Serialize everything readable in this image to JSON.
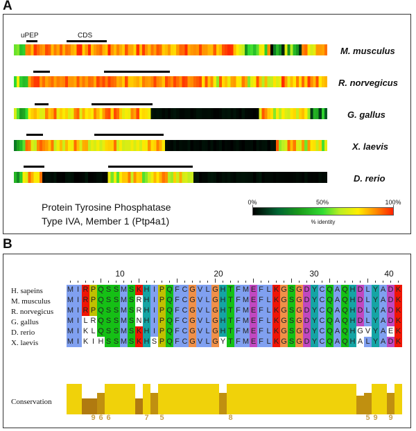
{
  "panel_a": {
    "letter": "A",
    "species": [
      "M. musculus",
      "R. norvegicus",
      "G. gallus",
      "X. laevis",
      "D. rerio"
    ],
    "bar_labels": {
      "upep": "uPEP",
      "cds": "CDS"
    },
    "caption_line1": "Protein Tyrosine Phosphatase",
    "caption_line2": "Type IVA, Member 1 (Ptp4a1)",
    "legend": {
      "ticks": [
        "0%",
        "50%",
        "100%"
      ],
      "title": "% identity"
    }
  },
  "panel_b": {
    "letter": "B",
    "ruler": [
      "10",
      "20",
      "30",
      "40"
    ],
    "species": [
      "H. sapeins",
      "M. musculus",
      "R. norvegicus",
      "G. gallus",
      "D. rerio",
      "X. laevis"
    ],
    "sequences": [
      "MIRPQSSMSKHIPQFCGVLGHTFMEFLKGSGDYCQAQHDLYADK",
      "MIRPQSSMSRHIPQFCGVLGHTFMEFLKGSGDYCQAQHDLYADK",
      "MIRPQSSMSRHIPQFCGVLGHTFMEFLKGSGDYCQAQHDLYADK",
      "MILRQSSMSNHIPQFCGVLGHTFMEFLKGSGDYCQAQHDLYADK",
      "MIKLQSSMSKHIPQFCGVLGHTFMEFLKGSGDYCQAQHGVYAEK",
      "MIKIHSSMSKHSPQFCGVLGYTFMEFLKGSGDYCQAQHALYADK"
    ],
    "conservation_label": "Conservation",
    "conservation_numbers": [
      "9",
      "6",
      "6",
      "7",
      "5",
      "8",
      "5",
      "9",
      "9"
    ]
  },
  "colors": {
    "identity_low": "#000000",
    "identity_mid": "#33cc33",
    "identity_high": "#ff2a00",
    "conservation": "#f0d20a"
  }
}
